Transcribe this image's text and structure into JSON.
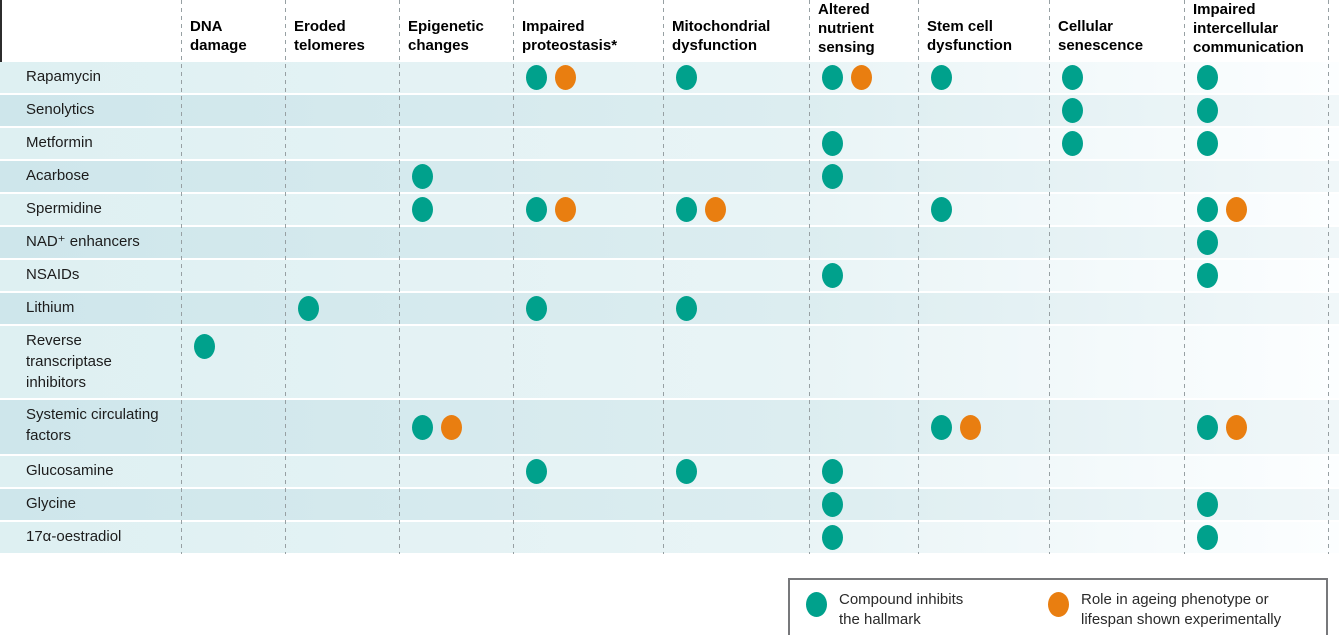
{
  "figure": {
    "description": "Matrix of compounds versus hallmarks of ageing they target"
  },
  "chart_data": {
    "type": "table",
    "columns": [
      {
        "id": "dna-damage",
        "lines": [
          "DNA",
          "damage"
        ]
      },
      {
        "id": "eroded-telomeres",
        "lines": [
          "Eroded",
          "telomeres"
        ]
      },
      {
        "id": "epigenetic-changes",
        "lines": [
          "Epigenetic",
          "changes"
        ]
      },
      {
        "id": "impaired-proteostasis",
        "lines": [
          "Impaired",
          "proteostasis*"
        ]
      },
      {
        "id": "mitochondrial-dysfunction",
        "lines": [
          "Mitochondrial",
          "dysfunction"
        ]
      },
      {
        "id": "altered-nutrient-sensing",
        "lines": [
          "Altered",
          "nutrient",
          "sensing"
        ]
      },
      {
        "id": "stem-cell-dysfunction",
        "lines": [
          "Stem cell",
          "dysfunction"
        ]
      },
      {
        "id": "cellular-senescence",
        "lines": [
          "Cellular",
          "senescence"
        ]
      },
      {
        "id": "impaired-intercellular-communication",
        "lines": [
          "Impaired",
          "intercellular",
          "communication"
        ]
      }
    ],
    "marker_meaning": {
      "T": "Compound inhibits the hallmark",
      "O": "Role in ageing phenotype or lifespan shown experimentally"
    },
    "colors": {
      "inhibits": "#00a18c",
      "experimental": "#e97e10"
    },
    "rows": [
      {
        "label": "Rapamycin",
        "cells": [
          "",
          "",
          "",
          "TO",
          "T",
          "TO",
          "T",
          "T",
          "T"
        ]
      },
      {
        "label": "Senolytics",
        "cells": [
          "",
          "",
          "",
          "",
          "",
          "",
          "",
          "T",
          "T"
        ]
      },
      {
        "label": "Metformin",
        "cells": [
          "",
          "",
          "",
          "",
          "",
          "T",
          "",
          "T",
          "T"
        ]
      },
      {
        "label": "Acarbose",
        "cells": [
          "",
          "",
          "T",
          "",
          "",
          "T",
          "",
          "",
          ""
        ]
      },
      {
        "label": "Spermidine",
        "cells": [
          "",
          "",
          "T",
          "TO",
          "TO",
          "",
          "T",
          "",
          "TO"
        ]
      },
      {
        "label": "NAD⁺ enhancers",
        "cells": [
          "",
          "",
          "",
          "",
          "",
          "",
          "",
          "",
          "T"
        ]
      },
      {
        "label": "NSAIDs",
        "cells": [
          "",
          "",
          "",
          "",
          "",
          "T",
          "",
          "",
          "T"
        ]
      },
      {
        "label": "Lithium",
        "cells": [
          "",
          "T",
          "",
          "T",
          "T",
          "",
          "",
          "",
          ""
        ]
      },
      {
        "label": "Reverse transcriptase inhibitors",
        "cells": [
          "T",
          "",
          "",
          "",
          "",
          "",
          "",
          "",
          ""
        ]
      },
      {
        "label": "Systemic circulating factors",
        "cells": [
          "",
          "",
          "TO",
          "",
          "",
          "",
          "TO",
          "",
          "TO"
        ]
      },
      {
        "label": "Glucosamine",
        "cells": [
          "",
          "",
          "",
          "T",
          "T",
          "T",
          "",
          "",
          ""
        ]
      },
      {
        "label": "Glycine",
        "cells": [
          "",
          "",
          "",
          "",
          "",
          "T",
          "",
          "",
          "T"
        ]
      },
      {
        "label": "17α-oestradiol",
        "cells": [
          "",
          "",
          "",
          "",
          "",
          "T",
          "",
          "",
          "T"
        ]
      }
    ]
  },
  "legend": {
    "items": [
      {
        "marker": "inhibits",
        "color": "#00a18c",
        "lines": [
          "Compound inhibits",
          "the hallmark"
        ]
      },
      {
        "marker": "experimental",
        "color": "#e97e10",
        "lines": [
          "Role in ageing phenotype or",
          "lifespan shown experimentally"
        ]
      }
    ]
  }
}
